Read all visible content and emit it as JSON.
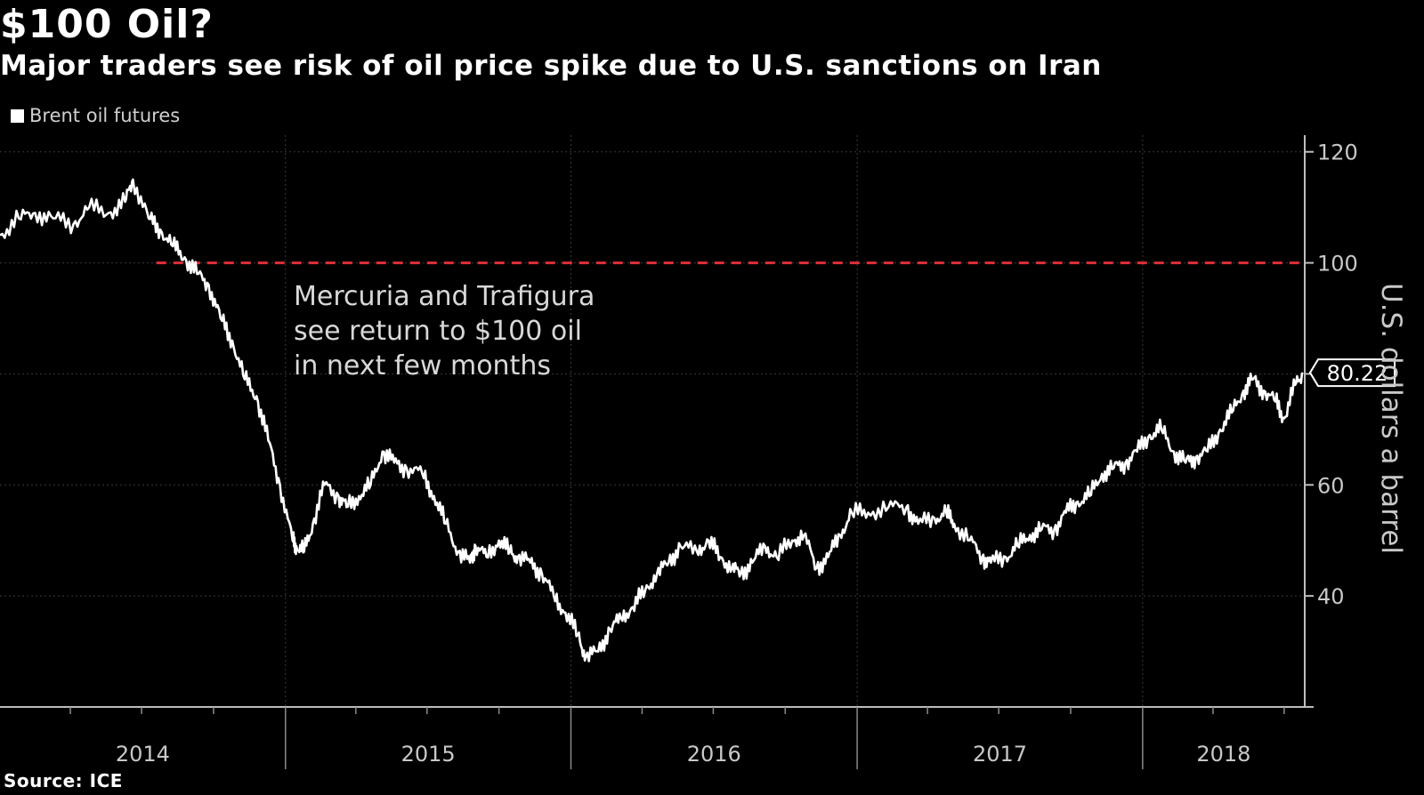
{
  "title": "$100 Oil?",
  "subtitle": "Major traders see risk of oil price spike due to U.S. sanctions on Iran",
  "legend_label": "Brent oil futures",
  "source": "Source: ICE",
  "colors": {
    "background": "#000000",
    "series": "#ffffff",
    "threshold": "#e0303a",
    "grid": "#3a3a3a"
  },
  "chart_data": {
    "type": "line",
    "title": "$100 Oil?",
    "subtitle": "Major traders see risk of oil price spike due to U.S. sanctions on Iran",
    "ylabel": "U.S. dollars a barrel",
    "y_axis_position": "right",
    "ylim": [
      20,
      123
    ],
    "yticks": [
      40,
      60,
      80,
      100,
      120
    ],
    "xlim": [
      "2014-01-01",
      "2018-07-25"
    ],
    "xtick_labels": [
      "2014",
      "2015",
      "2016",
      "2017",
      "2018"
    ],
    "grid": true,
    "legend": {
      "position": "top-left",
      "entries": [
        "Brent oil futures"
      ]
    },
    "series": [
      {
        "name": "Brent oil futures",
        "x": [
          "2014-01-01",
          "2014-01-25",
          "2014-02-15",
          "2014-03-10",
          "2014-04-05",
          "2014-04-25",
          "2014-05-20",
          "2014-06-10",
          "2014-06-20",
          "2014-07-10",
          "2014-07-25",
          "2014-08-10",
          "2014-08-25",
          "2014-09-10",
          "2014-09-25",
          "2014-10-10",
          "2014-10-25",
          "2014-11-10",
          "2014-11-25",
          "2014-12-10",
          "2014-12-25",
          "2015-01-10",
          "2015-01-15",
          "2015-01-25",
          "2015-02-05",
          "2015-02-20",
          "2015-03-10",
          "2015-03-20",
          "2015-04-05",
          "2015-04-20",
          "2015-05-05",
          "2015-05-20",
          "2015-06-05",
          "2015-06-25",
          "2015-07-10",
          "2015-07-25",
          "2015-08-10",
          "2015-08-25",
          "2015-09-01",
          "2015-09-15",
          "2015-10-01",
          "2015-10-15",
          "2015-10-25",
          "2015-11-10",
          "2015-11-25",
          "2015-12-10",
          "2015-12-25",
          "2016-01-10",
          "2016-01-20",
          "2016-02-05",
          "2016-02-20",
          "2016-03-05",
          "2016-03-20",
          "2016-04-05",
          "2016-04-20",
          "2016-05-05",
          "2016-05-20",
          "2016-06-10",
          "2016-06-25",
          "2016-07-10",
          "2016-07-25",
          "2016-08-05",
          "2016-08-20",
          "2016-09-05",
          "2016-09-20",
          "2016-10-10",
          "2016-10-25",
          "2016-11-10",
          "2016-11-25",
          "2016-12-10",
          "2016-12-25",
          "2017-01-15",
          "2017-02-10",
          "2017-03-05",
          "2017-03-20",
          "2017-04-10",
          "2017-04-25",
          "2017-05-05",
          "2017-05-25",
          "2017-06-10",
          "2017-06-21",
          "2017-07-10",
          "2017-07-25",
          "2017-08-10",
          "2017-08-25",
          "2017-09-10",
          "2017-09-25",
          "2017-10-10",
          "2017-10-25",
          "2017-11-10",
          "2017-11-25",
          "2017-12-10",
          "2017-12-25",
          "2018-01-10",
          "2018-01-25",
          "2018-02-10",
          "2018-02-25",
          "2018-03-10",
          "2018-03-25",
          "2018-04-10",
          "2018-04-25",
          "2018-05-10",
          "2018-05-22",
          "2018-06-05",
          "2018-06-20",
          "2018-07-01",
          "2018-07-15",
          "2018-07-25"
        ],
        "y": [
          105,
          108,
          109,
          108,
          107,
          110,
          109,
          111,
          115,
          108,
          106,
          103,
          101,
          98,
          96,
          90,
          86,
          79,
          76,
          68,
          60,
          50,
          49,
          48,
          53,
          60,
          58,
          56,
          58,
          60,
          66,
          64,
          63,
          62,
          58,
          53,
          48,
          46,
          49,
          47,
          50,
          48,
          47,
          46,
          44,
          40,
          37,
          33,
          29,
          30,
          34,
          36,
          38,
          41,
          44,
          46,
          49,
          48,
          50,
          47,
          45,
          44,
          46,
          49,
          47,
          50,
          51,
          45,
          47,
          51,
          55,
          55,
          56,
          56,
          53,
          54,
          55,
          53,
          50,
          47,
          46,
          47,
          49,
          51,
          52,
          52,
          55,
          57,
          58,
          62,
          63,
          64,
          66,
          69,
          70,
          66,
          64,
          65,
          66,
          70,
          73,
          77,
          79,
          77,
          75,
          72,
          78,
          80.22
        ]
      }
    ],
    "reference_lines": [
      {
        "y": 100,
        "style": "dashed",
        "color": "#e0303a"
      }
    ],
    "last_value_label": "80.22",
    "annotations": [
      {
        "lines": [
          "Mercuria and Trafigura",
          "see return to $100 oil",
          "in next few months"
        ]
      }
    ]
  }
}
